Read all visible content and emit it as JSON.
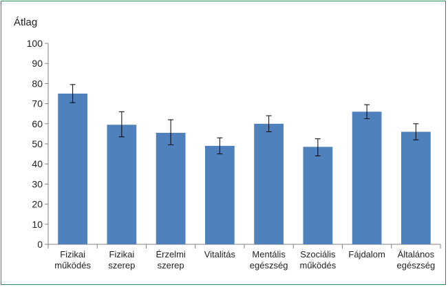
{
  "chart_data": {
    "type": "bar",
    "title": "",
    "ylabel": "Átlag",
    "xlabel": "",
    "ylim": [
      0,
      100
    ],
    "yticks": [
      0,
      10,
      20,
      30,
      40,
      50,
      60,
      70,
      80,
      90,
      100
    ],
    "grid": false,
    "categories": [
      [
        "Fizikai",
        "működés"
      ],
      [
        "Fizikai",
        "szerep"
      ],
      [
        "Érzelmi",
        "szerep"
      ],
      [
        "Vitalitás"
      ],
      [
        "Mentális",
        "egészség"
      ],
      [
        "Szociális",
        "működés"
      ],
      [
        "Fájdalom"
      ],
      [
        "Általános",
        "egészség"
      ]
    ],
    "values": [
      75,
      59.5,
      55.5,
      49,
      60,
      48.5,
      66,
      56
    ],
    "error_low": [
      70.5,
      53.5,
      49.5,
      45,
      56,
      44,
      62.5,
      52
    ],
    "error_high": [
      79.5,
      66,
      62,
      53,
      64,
      52.5,
      69.5,
      60
    ],
    "colors": {
      "bar": "#4f81bd",
      "frame": "#2e8b57",
      "axis": "#808080",
      "error": "#000000"
    }
  }
}
